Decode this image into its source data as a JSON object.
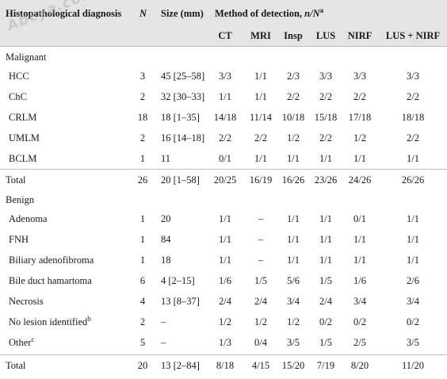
{
  "watermark": "Abcya.com",
  "header": {
    "diagnosis": "Histopathological diagnosis",
    "n": "N",
    "size": "Size (mm)",
    "method": "Method of detection, ",
    "method_ital": "n/N",
    "method_sup": "a",
    "cols": [
      "CT",
      "MRI",
      "Insp",
      "LUS",
      "NIRF",
      "LUS + NIRF"
    ]
  },
  "sections": {
    "malignant": "Malignant",
    "benign": "Benign"
  },
  "malignant_rows": [
    {
      "name": "HCC",
      "sup": "",
      "n": "3",
      "size": "45 [25–58]",
      "ct": "3/3",
      "mri": "1/1",
      "insp": "2/3",
      "lus": "3/3",
      "nirf": "3/3",
      "lusnirf": "3/3"
    },
    {
      "name": "ChC",
      "sup": "",
      "n": "2",
      "size": "32 [30–33]",
      "ct": "1/1",
      "mri": "1/1",
      "insp": "2/2",
      "lus": "2/2",
      "nirf": "2/2",
      "lusnirf": "2/2"
    },
    {
      "name": "CRLM",
      "sup": "",
      "n": "18",
      "size": "18 [1–35]",
      "ct": "14/18",
      "mri": "11/14",
      "insp": "10/18",
      "lus": "15/18",
      "nirf": "17/18",
      "lusnirf": "18/18"
    },
    {
      "name": "UMLM",
      "sup": "",
      "n": "2",
      "size": "16 [14–18]",
      "ct": "2/2",
      "mri": "2/2",
      "insp": "1/2",
      "lus": "2/2",
      "nirf": "1/2",
      "lusnirf": "2/2"
    },
    {
      "name": "BCLM",
      "sup": "",
      "n": "1",
      "size": "11",
      "ct": "0/1",
      "mri": "1/1",
      "insp": "1/1",
      "lus": "1/1",
      "nirf": "1/1",
      "lusnirf": "1/1"
    }
  ],
  "malignant_total": {
    "name": "Total",
    "n": "26",
    "size": "20 [1–58]",
    "ct": "20/25",
    "mri": "16/19",
    "insp": "16/26",
    "lus": "23/26",
    "nirf": "24/26",
    "lusnirf": "26/26"
  },
  "benign_rows": [
    {
      "name": "Adenoma",
      "sup": "",
      "n": "1",
      "size": "20",
      "ct": "1/1",
      "mri": "–",
      "insp": "1/1",
      "lus": "1/1",
      "nirf": "0/1",
      "lusnirf": "1/1"
    },
    {
      "name": "FNH",
      "sup": "",
      "n": "1",
      "size": "84",
      "ct": "1/1",
      "mri": "–",
      "insp": "1/1",
      "lus": "1/1",
      "nirf": "1/1",
      "lusnirf": "1/1"
    },
    {
      "name": "Biliary adenofibroma",
      "sup": "",
      "n": "1",
      "size": "18",
      "ct": "1/1",
      "mri": "–",
      "insp": "1/1",
      "lus": "1/1",
      "nirf": "1/1",
      "lusnirf": "1/1"
    },
    {
      "name": "Bile duct hamartoma",
      "sup": "",
      "n": "6",
      "size": "4 [2–15]",
      "ct": "1/6",
      "mri": "1/5",
      "insp": "5/6",
      "lus": "1/5",
      "nirf": "1/6",
      "lusnirf": "2/6"
    },
    {
      "name": "Necrosis",
      "sup": "",
      "n": "4",
      "size": "13 [8–37]",
      "ct": "2/4",
      "mri": "2/4",
      "insp": "3/4",
      "lus": "2/4",
      "nirf": "3/4",
      "lusnirf": "3/4"
    },
    {
      "name": "No lesion identified",
      "sup": "b",
      "n": "2",
      "size": "–",
      "ct": "1/2",
      "mri": "1/2",
      "insp": "1/2",
      "lus": "0/2",
      "nirf": "0/2",
      "lusnirf": "0/2"
    },
    {
      "name": "Other",
      "sup": "c",
      "n": "5",
      "size": "–",
      "ct": "1/3",
      "mri": "0/4",
      "insp": "3/5",
      "lus": "1/5",
      "nirf": "2/5",
      "lusnirf": "3/5"
    }
  ],
  "benign_total": {
    "name": "Total",
    "n": "20",
    "size": "13 [2–84]",
    "ct": "8/18",
    "mri": "4/15",
    "insp": "15/20",
    "lus": "7/19",
    "nirf": "8/20",
    "lusnirf": "11/20"
  }
}
